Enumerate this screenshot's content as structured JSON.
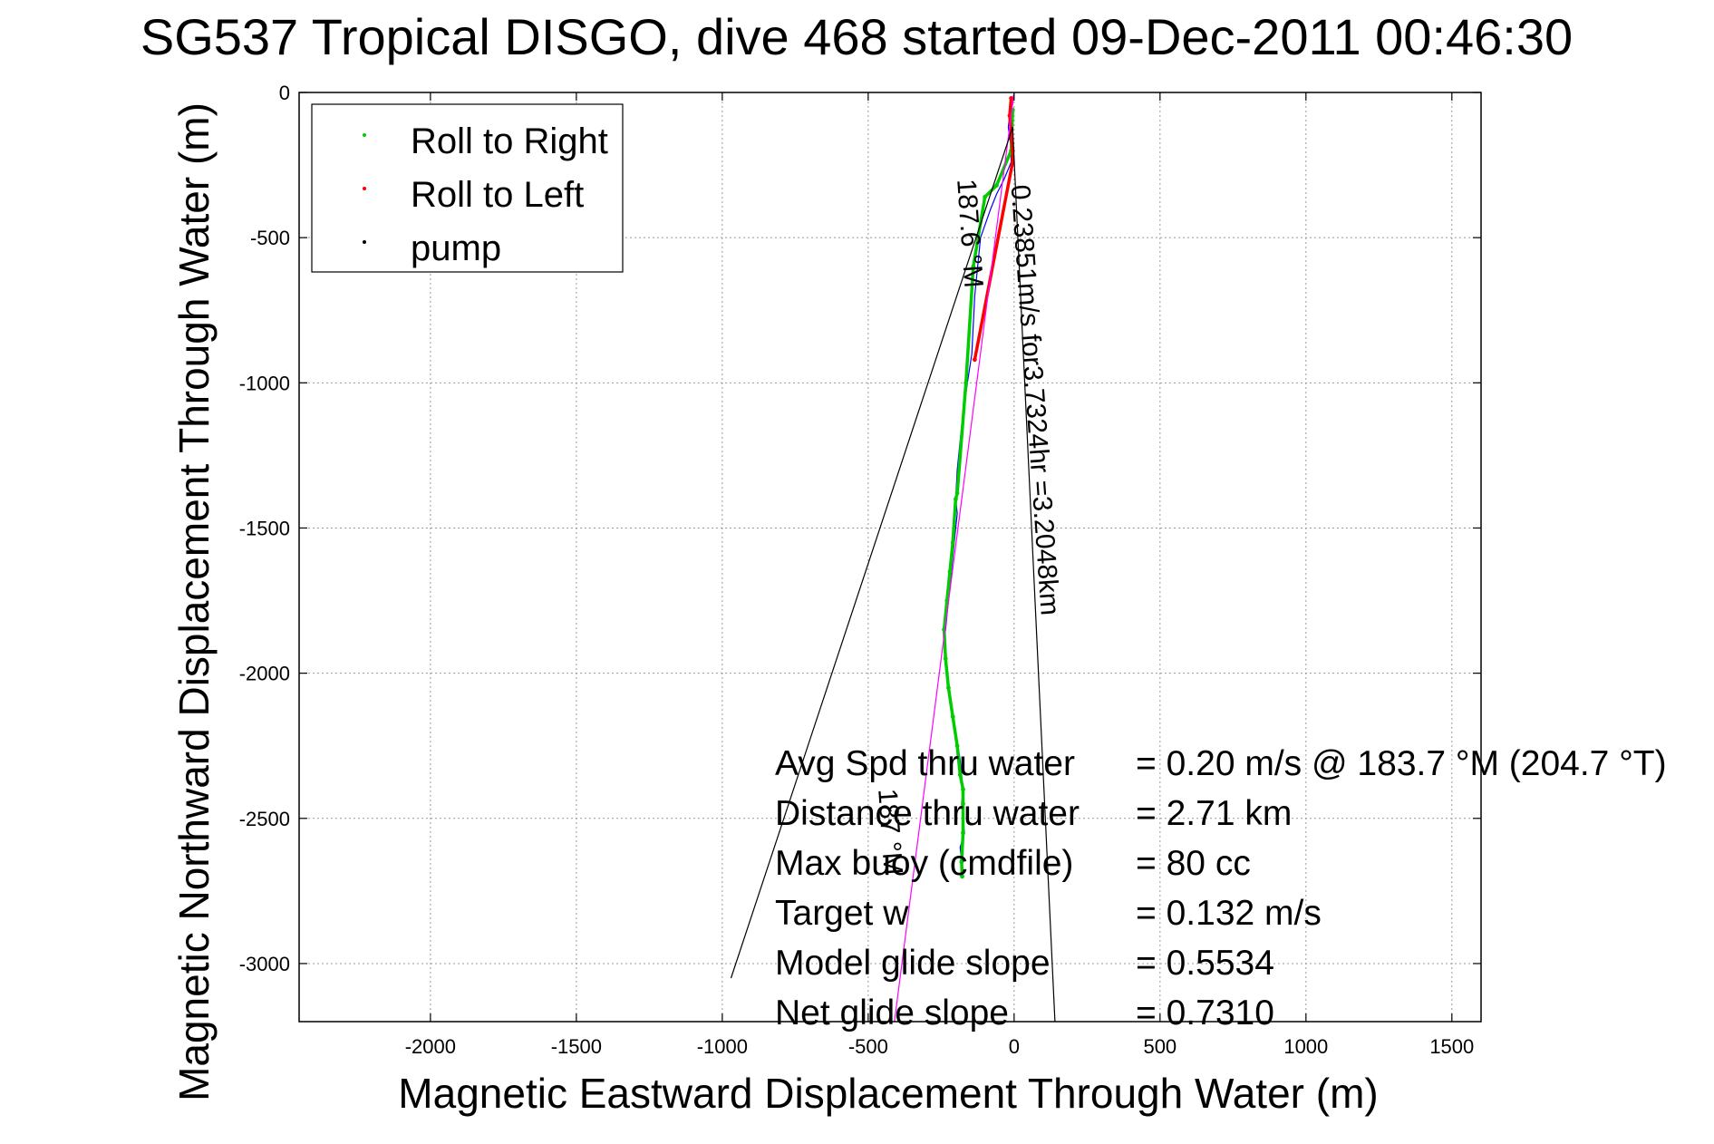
{
  "chart_data": {
    "type": "line",
    "title": "SG537 Tropical DISGO, dive 468 started 09-Dec-2011 00:46:30",
    "xlabel": "Magnetic Eastward Displacement Through Water (m)",
    "ylabel": "Magnetic Northward Displacement Through Water (m)",
    "xlim": [
      -2450,
      1600
    ],
    "ylim": [
      -3200,
      0
    ],
    "xticks": [
      -2000,
      -1500,
      -1000,
      -500,
      0,
      500,
      1000,
      1500
    ],
    "yticks": [
      0,
      -500,
      -1000,
      -1500,
      -2000,
      -2500,
      -3000
    ],
    "grid": true,
    "legend_position": "top-left",
    "legend": [
      {
        "label": "Roll to Right",
        "color": "#00cc00"
      },
      {
        "label": "Roll to Left",
        "color": "#ff0000"
      },
      {
        "label": "pump",
        "color": "#000000"
      }
    ],
    "series": [
      {
        "color": "#0000ff",
        "x": [
          0,
          -5,
          -15,
          -20,
          -12,
          -10,
          -35,
          -60,
          -80,
          -115,
          -135,
          -145,
          -160,
          -180,
          -195,
          -200,
          -195,
          -200,
          -210,
          -220,
          -230,
          -240,
          -230,
          -220,
          -200,
          -185,
          -175,
          -180,
          -175,
          -170,
          -185,
          -180,
          -175
        ],
        "y": [
          0,
          -40,
          -80,
          -120,
          -180,
          -240,
          -300,
          -350,
          -400,
          -500,
          -700,
          -900,
          -1000,
          -1150,
          -1300,
          -1400,
          -1450,
          -1500,
          -1600,
          -1700,
          -1800,
          -1900,
          -2000,
          -2100,
          -2200,
          -2300,
          -2400,
          -2450,
          -2500,
          -2550,
          -2600,
          -2650,
          -2700
        ]
      },
      {
        "name": "Roll to Right",
        "color": "#00cc00",
        "x": [
          -5,
          -10,
          -60,
          -100,
          -140,
          -165,
          -195,
          -200,
          -210,
          -220,
          -230,
          -240,
          -235,
          -225,
          -210,
          -195,
          -185,
          -175,
          -175,
          -175,
          -180,
          -178
        ],
        "y": [
          -60,
          -200,
          -320,
          -360,
          -600,
          -1000,
          -1380,
          -1400,
          -1550,
          -1650,
          -1750,
          -1850,
          -1950,
          -2050,
          -2150,
          -2250,
          -2350,
          -2400,
          -2450,
          -2550,
          -2650,
          -2700
        ]
      },
      {
        "name": "Roll to Left",
        "color": "#ff0000",
        "x": [
          -10,
          -15,
          -5,
          -5,
          -135
        ],
        "y": [
          -20,
          -80,
          -200,
          -240,
          -920
        ]
      },
      {
        "color": "#ff00ff",
        "x": [
          0,
          -410
        ],
        "y": [
          0,
          -3200
        ]
      },
      {
        "color": "#000000",
        "x": [
          -970,
          -5,
          140
        ],
        "y": [
          -3050,
          -120,
          -3200
        ]
      }
    ],
    "annotations": [
      {
        "text": "0.23851m/s for3.7324hr =3.2048km",
        "x": -10,
        "y": -320,
        "rotation": 86
      },
      {
        "text": "187.6 °M",
        "x": -195,
        "y": -300,
        "rotation": 86
      },
      {
        "text": "187 °M",
        "x": -465,
        "y": -2400,
        "rotation": 86
      }
    ],
    "stats": [
      {
        "label": "Avg Spd thru water",
        "value": "=  0.20 m/s @ 183.7 °M (204.7 °T)"
      },
      {
        "label": "Distance thru water",
        "value": "=  2.71 km"
      },
      {
        "label": "Max buoy (cmdfile)",
        "value": "= 80 cc"
      },
      {
        "label": "Target w",
        "value": "= 0.132 m/s"
      },
      {
        "label": "Model glide slope",
        "value": "= 0.5534"
      },
      {
        "label": "Net glide slope",
        "value": "= 0.7310"
      }
    ]
  }
}
